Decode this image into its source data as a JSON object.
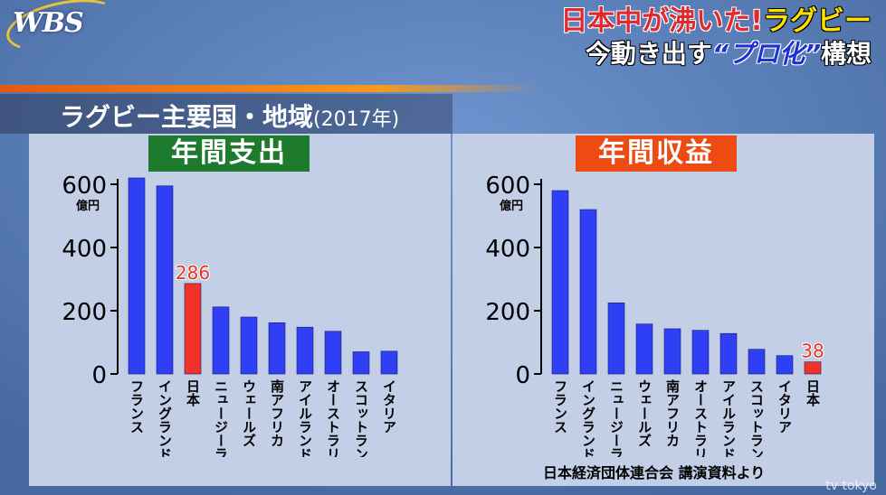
{
  "logo": "WBS",
  "headline": {
    "part1": "日本中が沸いた!",
    "part2": "ラグビー",
    "line2_a": "今動き出す",
    "line2_b": "“プロ化”",
    "line2_c": "構想"
  },
  "subtitle": {
    "main": "ラグビー主要国・地域",
    "year": "(2017年)"
  },
  "source": "日本経済団体連合会 講演資料より",
  "watermark": "tv tokyo",
  "colors": {
    "bar": "#2f3ff5",
    "highlight": "#f0322a",
    "label_highlight": "#e8301e"
  },
  "chart_data": [
    {
      "type": "bar",
      "title": "年間支出",
      "unit": "億円",
      "ylim": [
        0,
        600
      ],
      "yticks": [
        0,
        200,
        400,
        600
      ],
      "categories": [
        "フランス",
        "イングランド",
        "日本",
        "ニュージーランド",
        "ウェールズ",
        "南アフリカ",
        "アイルランド",
        "オーストラリア",
        "スコットランド",
        "イタリア"
      ],
      "values": [
        620,
        595,
        286,
        212,
        180,
        162,
        148,
        135,
        70,
        72
      ],
      "highlight_index": 2,
      "highlight_label": "286"
    },
    {
      "type": "bar",
      "title": "年間収益",
      "unit": "億円",
      "ylim": [
        0,
        600
      ],
      "yticks": [
        0,
        200,
        400,
        600
      ],
      "categories": [
        "フランス",
        "イングランド",
        "ニュージーランド",
        "ウェールズ",
        "南アフリカ",
        "オーストラリア",
        "アイルランド",
        "スコットランド",
        "イタリア",
        "日本"
      ],
      "values": [
        580,
        520,
        225,
        158,
        143,
        138,
        128,
        78,
        58,
        38
      ],
      "highlight_index": 9,
      "highlight_label": "38"
    }
  ]
}
